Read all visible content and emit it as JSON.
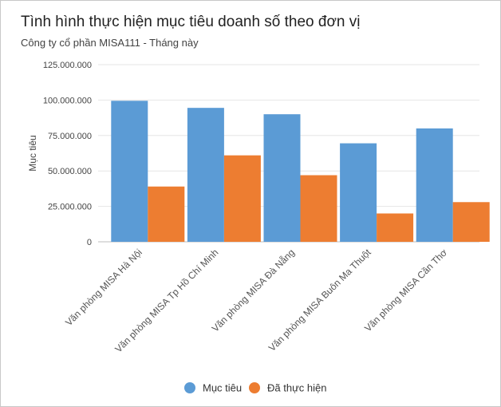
{
  "chart_data": {
    "type": "bar",
    "title": "Tình hình thực hiện mục tiêu doanh số theo đơn vị",
    "subtitle": "Công ty cổ phần MISA111 - Tháng này",
    "ylabel": "Mục tiêu",
    "xlabel": "",
    "ylim": [
      0,
      125000000
    ],
    "yticks": [
      0,
      25000000,
      50000000,
      75000000,
      100000000,
      125000000
    ],
    "ytick_labels": [
      "0",
      "25.000.000",
      "50.000.000",
      "75.000.000",
      "100.000.000",
      "125.000.000"
    ],
    "grid": true,
    "legend_position": "bottom",
    "categories": [
      "Văn phòng MISA Hà Nội",
      "Văn phòng MISA Tp Hồ Chí Minh",
      "Văn phòng MISA Đà Nẵng",
      "Văn phòng MISA Buôn Ma Thuột",
      "Văn phòng MISA Cần Thơ"
    ],
    "series": [
      {
        "name": "Mục tiêu",
        "color": "#5b9bd5",
        "values": [
          99500000,
          94500000,
          90000000,
          69500000,
          80000000
        ]
      },
      {
        "name": "Đã thực hiện",
        "color": "#ed7d31",
        "values": [
          39000000,
          61000000,
          47000000,
          20000000,
          28000000
        ]
      }
    ]
  }
}
